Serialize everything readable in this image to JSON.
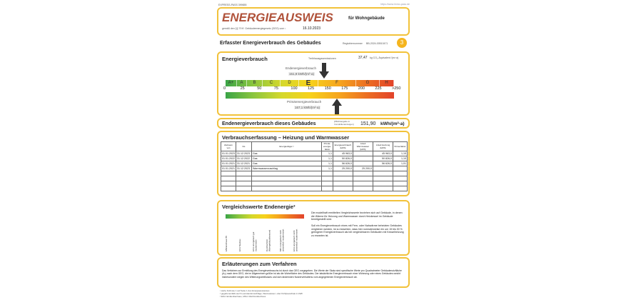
{
  "top": {
    "left": "EXPRESS-PASS 399655",
    "right": "https://www.immo-pass.de"
  },
  "header": {
    "title": "ENERGIEAUSWEIS",
    "subtitle": "für Wohngebäude",
    "law": "gemäß den §§ 79 ff. Gebäudeenergiegesetz (GEG) vom ¹",
    "date": "16.10.2023"
  },
  "section": {
    "title": "Erfasster Energieverbrauch des Gebäudes",
    "reg_label": "Registriernummer",
    "reg": "BB-2024-00510471",
    "page": "3"
  },
  "energy": {
    "title": "Energieverbrauch",
    "co2_label": "Treibhausgasemissionen",
    "co2_value": "37,47",
    "co2_unit": "kg CO₂-Äquivalent /(m²·a)",
    "end_label": "Endenergieverbrauch",
    "end_value": "151,9",
    "end_unit": "kWh/(m²·a)",
    "prim_label": "Primärenergieverbrauch",
    "prim_value": "167,1",
    "prim_unit": "kWh/(m²·a)",
    "classes": [
      "A+",
      "A",
      "B",
      "C",
      "D",
      "E",
      "F",
      "G",
      "H"
    ],
    "ticks": [
      "0",
      "25",
      "50",
      "75",
      "100",
      "125",
      "150",
      "175",
      "200",
      "225",
      ">250"
    ],
    "marker_endenergie": 151.9,
    "marker_primaer": 167.1,
    "current_class": "E"
  },
  "summary": {
    "label": "Endenergieverbrauch dieses Gebäudes",
    "note": "[Pflichtangabe in Immobilienanzeigen]",
    "value": "151,90",
    "unit": "kWh/(m²·a)"
  },
  "consumption": {
    "title": "Verbrauchserfassung – Heizung und Warmwasser",
    "headers": [
      "Zeitraum",
      "von",
      "bis",
      "Energieträger ²",
      "Primär-energie-faktor",
      "Energieverbrauch [kWh]",
      "Anteil Warmwasser [kWh]",
      "Anteil Heizung [kWh]",
      "Klima-faktor"
    ],
    "rows": [
      [
        "01.01.2023",
        "31.12.2023",
        "Gas",
        "1,1",
        "45 963,0",
        "",
        "45 963,0",
        "1,15"
      ],
      [
        "01.01.2022",
        "31.12.2022",
        "Gas",
        "1,1",
        "50 826,0",
        "",
        "50 826,0",
        "1,10"
      ],
      [
        "01.01.2021",
        "31.12.2021",
        "Gas",
        "1,1",
        "56 626,0",
        "",
        "56 626,0",
        "1,01"
      ],
      [
        "01.01.2021",
        "31.12.2023",
        "Warmwasserzuschlag",
        "1,1",
        "25 200,0",
        "25 200,0",
        "",
        ""
      ]
    ]
  },
  "compare": {
    "title": "Vergleichswerte Endenergie³",
    "labels": [
      "Effizienzhaus 55",
      "EFH Neubau",
      "EFH energetisch gut modernisiert",
      "Durchschnitt Wohngebäudebestand",
      "MFH energetisch nicht wesentlich modernisiert",
      "EFH energetisch nicht wesentlich modernisiert"
    ],
    "text1": "Die modellhaft ermittelten Vergleichswerte beziehen sich auf Gebäude, in denen die Wärme für Heizung und Warmwasser durch Heizkessel im Gebäude bereitgestellt wird.",
    "text2": "Soll ein Energieverbrauch eines mit Fern- oder Nahwärme beheizten Gebäudes verglichen werden, ist zu beachten, dass hier normalerweise ein um 15 bis 30 % geringerer Energieverbrauch als bei vergleichbaren Gebäuden mit Kesselheizung zu erwarten ist."
  },
  "explain": {
    "title": "Erläuterungen zum Verfahren",
    "text": "Das Verfahren zur Ermittlung des Energieverbrauchs ist durch das GEG vorgegeben. Die Werte der Skala sind spezifische Werte pro Quadratmeter Gebäudenutzfläche (Aₙ) nach dem GEG, die im Allgemeinen größer ist als die Wohnfläche des Gebäudes. Der tatsächliche Energieverbrauch einer Wohnung oder eines Gebäudes weicht insbesondere wegen des Witterungseinflusses und sich ändernden Nutzerverhaltens vom angegebenen Energieverbrauch ab."
  },
  "footnotes": [
    "¹ siehe Fußnote 1 auf Seite 1 des Energieausweises",
    "² gegebenenfalls auch Leerstandszuschläge, Warmwasser- oder Kühlpauschale in kWh",
    "³ EFH: Einfamilienhaus, MFH: Mehrfamilienhaus"
  ],
  "colors": {
    "frame": "#f2c23a",
    "title": "#b0523a",
    "accent": "#f0a020"
  }
}
